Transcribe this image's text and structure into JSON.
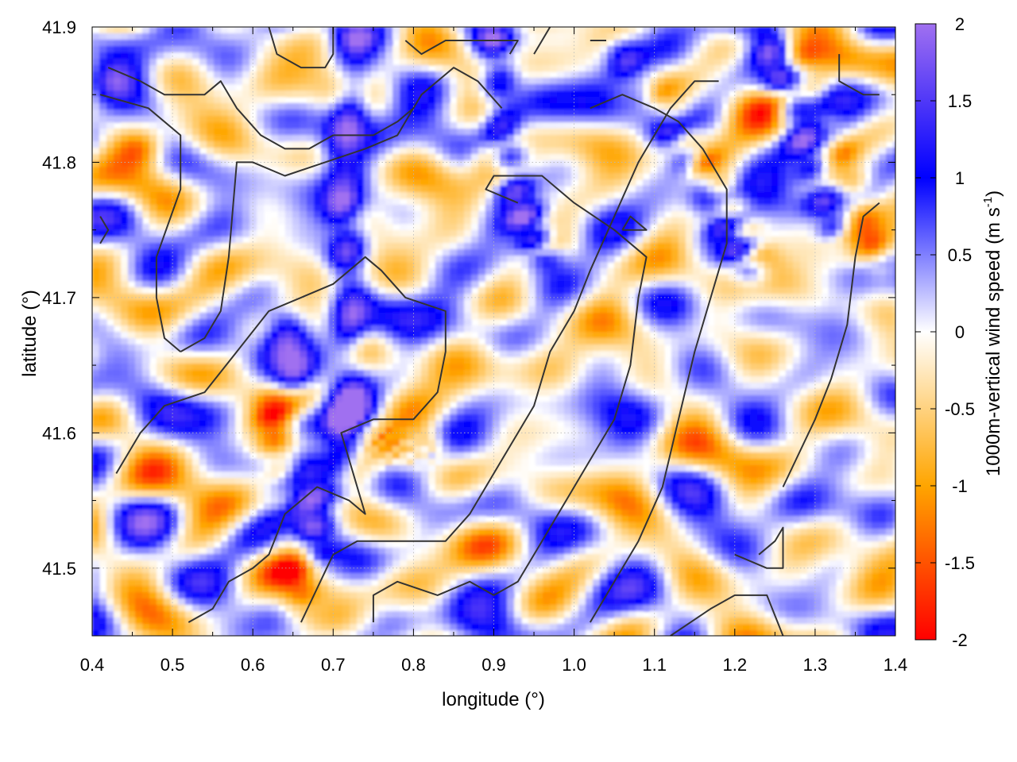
{
  "chart_data": {
    "type": "heatmap",
    "xlabel": "longitude (°)",
    "ylabel": "latitude (°)",
    "colorbar_label_main": "1000m-vertical wind speed (m s",
    "colorbar_label_sup": "-1",
    "colorbar_label_end": ")",
    "xlim": [
      0.4,
      1.4
    ],
    "ylim": [
      41.45,
      41.9
    ],
    "x_ticks": [
      0.4,
      0.5,
      0.6,
      0.7,
      0.8,
      0.9,
      1.0,
      1.1,
      1.2,
      1.3,
      1.4
    ],
    "x_tick_labels": [
      "0.4",
      "0.5",
      "0.6",
      "0.7",
      "0.8",
      "0.9",
      "1.0",
      "1.1",
      "1.2",
      "1.3",
      "1.4"
    ],
    "y_ticks": [
      41.5,
      41.6,
      41.7,
      41.8,
      41.9
    ],
    "y_tick_labels": [
      "41.5",
      "41.6",
      "41.7",
      "41.8",
      "41.9"
    ],
    "colorbar_range": [
      -2,
      2
    ],
    "colorbar_ticks": [
      2,
      1.5,
      1,
      0.5,
      0,
      -0.5,
      -1,
      -1.5,
      -2
    ],
    "colorbar_tick_labels": [
      "2",
      "1.5",
      "1",
      "0.5",
      "0",
      "-0.5",
      "-1",
      "-1.5",
      "-2"
    ],
    "colormap": [
      {
        "v": -2,
        "color": "#ff0000"
      },
      {
        "v": -1,
        "color": "#ffa500"
      },
      {
        "v": 0,
        "color": "#ffffff"
      },
      {
        "v": 1,
        "color": "#0000ff"
      },
      {
        "v": 2,
        "color": "#a070f0"
      }
    ],
    "grid": true,
    "contour_color": "#333333",
    "field_features": [
      {
        "kind": "positive-band",
        "points": [
          [
            0.73,
            41.89
          ],
          [
            0.71,
            41.78
          ],
          [
            0.72,
            41.72
          ],
          [
            0.72,
            41.62
          ],
          [
            0.7,
            41.56
          ]
        ],
        "peak": 1.8
      },
      {
        "kind": "positive-band",
        "points": [
          [
            0.9,
            41.89
          ],
          [
            0.91,
            41.82
          ],
          [
            0.93,
            41.77
          ],
          [
            0.96,
            41.73
          ]
        ],
        "peak": 1.7
      },
      {
        "kind": "positive-band",
        "points": [
          [
            0.64,
            41.68
          ],
          [
            0.67,
            41.57
          ],
          [
            0.68,
            41.5
          ]
        ],
        "peak": 1.2
      },
      {
        "kind": "positive-band",
        "points": [
          [
            1.06,
            41.88
          ],
          [
            1.12,
            41.82
          ],
          [
            1.18,
            41.76
          ],
          [
            1.22,
            41.72
          ]
        ],
        "peak": 1.3
      },
      {
        "kind": "positive-band",
        "points": [
          [
            1.24,
            41.89
          ],
          [
            1.27,
            41.84
          ],
          [
            1.3,
            41.79
          ],
          [
            1.33,
            41.74
          ]
        ],
        "peak": 1.5
      },
      {
        "kind": "negative-band",
        "points": [
          [
            1.1,
            41.85
          ],
          [
            1.17,
            41.79
          ],
          [
            1.23,
            41.73
          ]
        ],
        "peak": -0.9
      },
      {
        "kind": "negative-band",
        "points": [
          [
            1.28,
            41.88
          ],
          [
            1.34,
            41.8
          ],
          [
            1.38,
            41.72
          ]
        ],
        "peak": -0.9
      },
      {
        "kind": "negative-band",
        "points": [
          [
            0.75,
            41.6
          ],
          [
            0.79,
            41.58
          ],
          [
            0.82,
            41.59
          ]
        ],
        "peak": -1.0
      },
      {
        "kind": "negative-band",
        "points": [
          [
            0.62,
            41.62
          ],
          [
            0.64,
            41.55
          ],
          [
            0.66,
            41.47
          ]
        ],
        "peak": -0.8
      },
      {
        "kind": "negative-spot",
        "points": [
          [
            0.46,
            41.81
          ]
        ],
        "peak": -1.1
      },
      {
        "kind": "negative-spot",
        "points": [
          [
            0.9,
            41.8
          ]
        ],
        "peak": -1.3
      },
      {
        "kind": "positive-spot",
        "points": [
          [
            0.42,
            41.86
          ]
        ],
        "peak": 1.1
      }
    ],
    "contours": [
      [
        [
          0.42,
          41.87
        ],
        [
          0.46,
          41.86
        ],
        [
          0.49,
          41.85
        ],
        [
          0.54,
          41.85
        ],
        [
          0.56,
          41.86
        ],
        [
          0.58,
          41.84
        ],
        [
          0.61,
          41.82
        ],
        [
          0.64,
          41.81
        ],
        [
          0.67,
          41.81
        ],
        [
          0.7,
          41.82
        ],
        [
          0.73,
          41.82
        ],
        [
          0.75,
          41.82
        ],
        [
          0.78,
          41.83
        ],
        [
          0.8,
          41.84
        ]
      ],
      [
        [
          0.41,
          41.85
        ],
        [
          0.47,
          41.84
        ],
        [
          0.51,
          41.82
        ],
        [
          0.51,
          41.78
        ],
        [
          0.48,
          41.73
        ],
        [
          0.48,
          41.7
        ],
        [
          0.49,
          41.67
        ],
        [
          0.51,
          41.66
        ]
      ],
      [
        [
          0.41,
          41.76
        ],
        [
          0.42,
          41.75
        ],
        [
          0.41,
          41.74
        ]
      ],
      [
        [
          0.51,
          41.66
        ],
        [
          0.54,
          41.67
        ],
        [
          0.56,
          41.69
        ],
        [
          0.57,
          41.73
        ],
        [
          0.58,
          41.8
        ],
        [
          0.6,
          41.8
        ],
        [
          0.64,
          41.79
        ],
        [
          0.69,
          41.8
        ],
        [
          0.74,
          41.81
        ],
        [
          0.78,
          41.82
        ],
        [
          0.81,
          41.85
        ],
        [
          0.85,
          41.87
        ],
        [
          0.88,
          41.86
        ],
        [
          0.91,
          41.84
        ]
      ],
      [
        [
          0.62,
          41.9
        ],
        [
          0.63,
          41.88
        ],
        [
          0.66,
          41.87
        ],
        [
          0.69,
          41.87
        ],
        [
          0.7,
          41.88
        ],
        [
          0.7,
          41.9
        ]
      ],
      [
        [
          0.79,
          41.89
        ],
        [
          0.81,
          41.88
        ],
        [
          0.84,
          41.89
        ],
        [
          0.88,
          41.89
        ],
        [
          0.93,
          41.89
        ],
        [
          0.92,
          41.88
        ]
      ],
      [
        [
          0.43,
          41.57
        ],
        [
          0.46,
          41.6
        ],
        [
          0.49,
          41.62
        ],
        [
          0.54,
          41.63
        ],
        [
          0.58,
          41.66
        ],
        [
          0.62,
          41.69
        ],
        [
          0.66,
          41.7
        ],
        [
          0.7,
          41.71
        ],
        [
          0.74,
          41.73
        ],
        [
          0.76,
          41.72
        ],
        [
          0.79,
          41.7
        ],
        [
          0.84,
          41.69
        ],
        [
          0.84,
          41.66
        ],
        [
          0.83,
          41.63
        ],
        [
          0.8,
          41.61
        ],
        [
          0.75,
          41.61
        ],
        [
          0.71,
          41.6
        ],
        [
          0.72,
          41.58
        ],
        [
          0.73,
          41.56
        ],
        [
          0.74,
          41.54
        ],
        [
          0.72,
          41.55
        ],
        [
          0.68,
          41.56
        ],
        [
          0.66,
          41.55
        ],
        [
          0.64,
          41.54
        ],
        [
          0.62,
          41.51
        ],
        [
          0.6,
          41.5
        ],
        [
          0.57,
          41.49
        ],
        [
          0.55,
          41.47
        ],
        [
          0.52,
          41.46
        ]
      ],
      [
        [
          0.66,
          41.46
        ],
        [
          0.7,
          41.51
        ],
        [
          0.73,
          41.52
        ],
        [
          0.78,
          41.52
        ],
        [
          0.84,
          41.52
        ],
        [
          0.87,
          41.54
        ],
        [
          0.91,
          41.58
        ],
        [
          0.95,
          41.62
        ],
        [
          0.97,
          41.66
        ],
        [
          1.0,
          41.69
        ],
        [
          1.02,
          41.72
        ],
        [
          1.05,
          41.76
        ],
        [
          1.08,
          41.8
        ],
        [
          1.12,
          41.84
        ],
        [
          1.15,
          41.86
        ],
        [
          1.18,
          41.86
        ]
      ],
      [
        [
          0.75,
          41.46
        ],
        [
          0.75,
          41.48
        ],
        [
          0.78,
          41.49
        ],
        [
          0.83,
          41.48
        ],
        [
          0.87,
          41.49
        ],
        [
          0.9,
          41.48
        ],
        [
          0.93,
          41.49
        ],
        [
          0.96,
          41.52
        ],
        [
          0.99,
          41.55
        ],
        [
          1.02,
          41.58
        ],
        [
          1.05,
          41.61
        ],
        [
          1.07,
          41.65
        ],
        [
          1.08,
          41.7
        ],
        [
          1.09,
          41.73
        ],
        [
          1.05,
          41.75
        ],
        [
          1.0,
          41.77
        ],
        [
          0.96,
          41.79
        ],
        [
          0.93,
          41.79
        ],
        [
          0.9,
          41.79
        ],
        [
          0.89,
          41.78
        ],
        [
          0.93,
          41.77
        ]
      ],
      [
        [
          1.02,
          41.46
        ],
        [
          1.05,
          41.49
        ],
        [
          1.08,
          41.52
        ],
        [
          1.11,
          41.56
        ],
        [
          1.13,
          41.61
        ],
        [
          1.15,
          41.66
        ],
        [
          1.17,
          41.7
        ],
        [
          1.19,
          41.74
        ],
        [
          1.19,
          41.78
        ],
        [
          1.16,
          41.81
        ],
        [
          1.13,
          41.83
        ],
        [
          1.1,
          41.84
        ],
        [
          1.06,
          41.85
        ],
        [
          1.02,
          41.84
        ]
      ],
      [
        [
          1.12,
          41.45
        ],
        [
          1.17,
          41.47
        ],
        [
          1.2,
          41.48
        ],
        [
          1.24,
          41.48
        ],
        [
          1.26,
          41.45
        ]
      ],
      [
        [
          1.2,
          41.51
        ],
        [
          1.24,
          41.5
        ],
        [
          1.26,
          41.5
        ],
        [
          1.26,
          41.53
        ],
        [
          1.25,
          41.52
        ],
        [
          1.23,
          41.51
        ]
      ],
      [
        [
          1.06,
          41.75
        ],
        [
          1.07,
          41.76
        ],
        [
          1.09,
          41.75
        ],
        [
          1.06,
          41.75
        ]
      ],
      [
        [
          1.26,
          41.56
        ],
        [
          1.3,
          41.61
        ],
        [
          1.32,
          41.64
        ],
        [
          1.34,
          41.68
        ],
        [
          1.35,
          41.73
        ],
        [
          1.36,
          41.76
        ],
        [
          1.38,
          41.77
        ]
      ],
      [
        [
          1.33,
          41.88
        ],
        [
          1.33,
          41.86
        ],
        [
          1.36,
          41.85
        ],
        [
          1.38,
          41.85
        ]
      ],
      [
        [
          0.97,
          41.9
        ],
        [
          0.95,
          41.88
        ]
      ],
      [
        [
          1.02,
          41.89
        ],
        [
          1.04,
          41.89
        ]
      ]
    ]
  }
}
